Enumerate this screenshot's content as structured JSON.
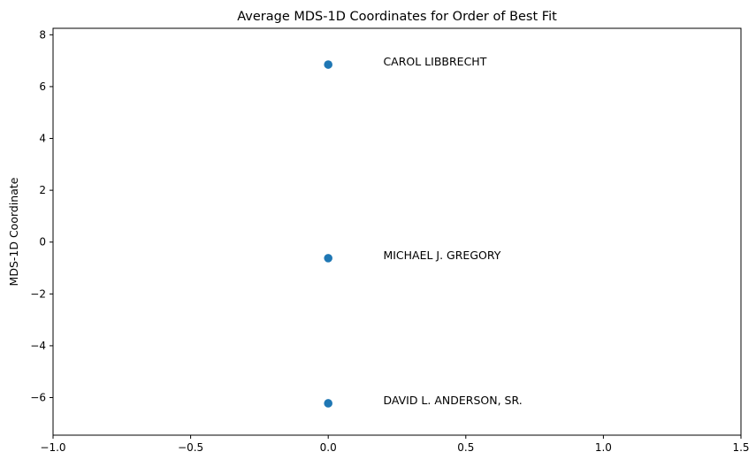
{
  "chart_data": {
    "type": "scatter",
    "title": "Average MDS-1D Coordinates for Order of Best Fit",
    "xlabel": "",
    "ylabel": "MDS-1D Coordinate",
    "xlim": [
      -1.0,
      1.5
    ],
    "ylim": [
      -7.45,
      8.25
    ],
    "grid": false,
    "x_ticks": [
      -1.0,
      -0.5,
      0.0,
      0.5,
      1.0,
      1.5
    ],
    "x_tick_labels": [
      "−1.0",
      "−0.5",
      "0.0",
      "0.5",
      "1.0",
      "1.5"
    ],
    "y_ticks": [
      -6,
      -4,
      -2,
      0,
      2,
      4,
      6,
      8
    ],
    "y_tick_labels": [
      "−6",
      "−4",
      "−2",
      "0",
      "2",
      "4",
      "6",
      "8"
    ],
    "marker_color": "#1f77b4",
    "points": [
      {
        "x": 0.0,
        "y": 6.85,
        "label": "CAROL LIBBRECHT"
      },
      {
        "x": 0.0,
        "y": -0.62,
        "label": "MICHAEL J. GREGORY"
      },
      {
        "x": 0.0,
        "y": -6.22,
        "label": "DAVID L. ANDERSON, SR."
      }
    ],
    "annotation_offset_x": 0.2
  }
}
